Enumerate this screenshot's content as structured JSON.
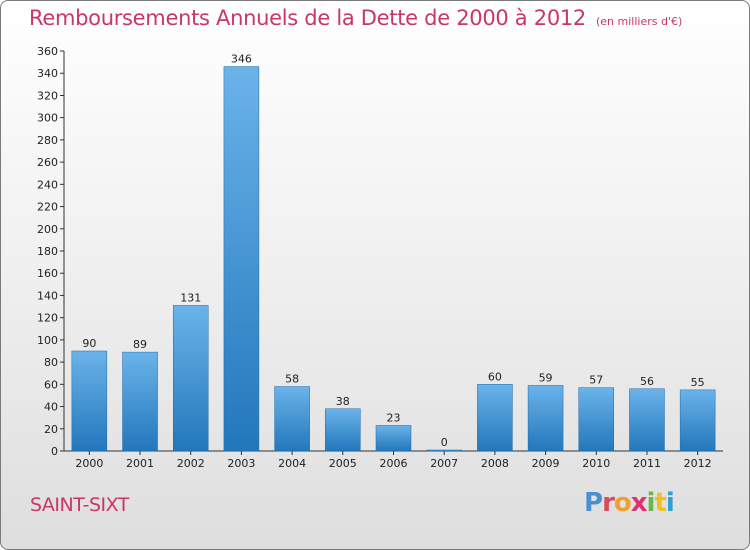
{
  "title": "Remboursements Annuels de la Dette de 2000 à 2012",
  "unit": "(en milliers d'€)",
  "town": "SAINT-SIXT",
  "logo": {
    "text": "Proxiti",
    "colors": [
      "#4a8fd0",
      "#d94a5a",
      "#f0a030",
      "#e03070",
      "#6bb84a",
      "#f0c020",
      "#30a0d0"
    ]
  },
  "colors": {
    "title": "#c8366a",
    "bar_top": "#6bb3ea",
    "bar_bottom": "#2277bb",
    "axis": "#333333"
  },
  "chart_data": {
    "type": "bar",
    "categories": [
      "2000",
      "2001",
      "2002",
      "2003",
      "2004",
      "2005",
      "2006",
      "2007",
      "2008",
      "2009",
      "2010",
      "2011",
      "2012"
    ],
    "values": [
      90,
      89,
      131,
      346,
      58,
      38,
      23,
      0,
      60,
      59,
      57,
      56,
      55
    ],
    "value_labels": [
      "90",
      "89",
      "131",
      "346",
      "58",
      "38",
      "23",
      "0",
      "60",
      "59",
      "57",
      "56",
      "55"
    ],
    "yticks": [
      "0",
      "20",
      "40",
      "60",
      "80",
      "100",
      "120",
      "140",
      "160",
      "180",
      "200",
      "220",
      "240",
      "260",
      "280",
      "300",
      "320",
      "340",
      "360"
    ],
    "ylim": [
      0,
      360
    ],
    "grid": false,
    "legend": "none"
  }
}
